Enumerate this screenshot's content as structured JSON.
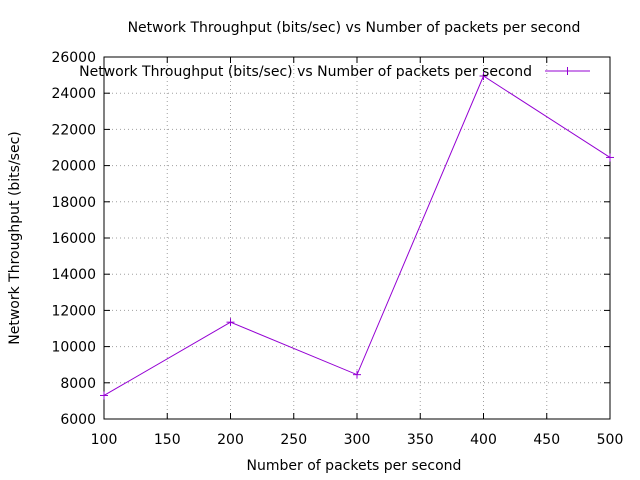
{
  "chart_data": {
    "type": "line",
    "title": "Network Throughput (bits/sec) vs Number of packets per second",
    "xlabel": "Number of packets per second",
    "ylabel": "Network Throughput (bits/sec)",
    "xlim": [
      100,
      500
    ],
    "ylim": [
      6000,
      26000
    ],
    "xticks": [
      100,
      150,
      200,
      250,
      300,
      350,
      400,
      450,
      500
    ],
    "yticks": [
      6000,
      8000,
      10000,
      12000,
      14000,
      16000,
      18000,
      20000,
      22000,
      24000,
      26000
    ],
    "grid": true,
    "legend_position": "top-right",
    "series": [
      {
        "name": "Network Throughput (bits/sec) vs Number of packets per second",
        "color": "#9400d3",
        "x": [
          100,
          200,
          300,
          400,
          500
        ],
        "y": [
          7300,
          11350,
          8450,
          24950,
          20450
        ]
      }
    ]
  }
}
